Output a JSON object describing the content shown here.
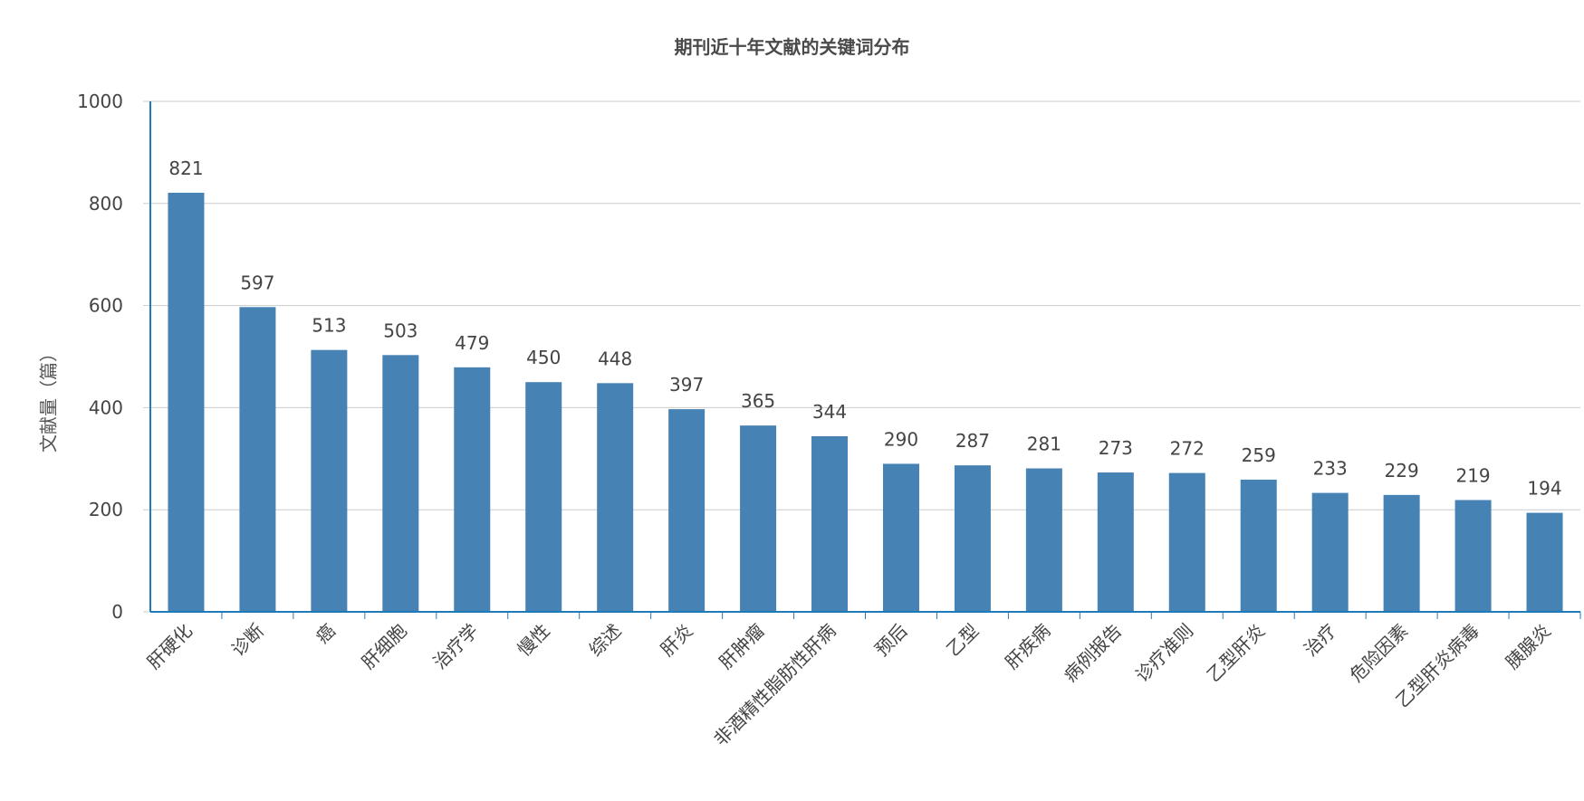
{
  "chart_data": {
    "type": "bar",
    "title": "期刊近十年文献的关键词分布",
    "xlabel": "",
    "ylabel": "文献量（篇）",
    "ylim": [
      0,
      1000
    ],
    "yticks": [
      "0",
      "200",
      "400",
      "600",
      "800",
      "1000"
    ],
    "grid": true,
    "categories": [
      "肝硬化",
      "诊断",
      "癌",
      "肝细胞",
      "治疗学",
      "慢性",
      "综述",
      "肝炎",
      "肝肿瘤",
      "非酒精性脂肪性肝病",
      "预后",
      "乙型",
      "肝疾病",
      "病例报告",
      "诊疗准则",
      "乙型肝炎",
      "治疗",
      "危险因素",
      "乙型肝炎病毒",
      "胰腺炎"
    ],
    "values": [
      821,
      597,
      513,
      503,
      479,
      450,
      448,
      397,
      365,
      344,
      290,
      287,
      281,
      273,
      272,
      259,
      233,
      229,
      219,
      194
    ],
    "colors": {
      "bar": "#4682b4",
      "axis": "#1f7bb8",
      "grid": "#cccccc",
      "tick_text": "#444444",
      "label_text": "#444444"
    }
  }
}
